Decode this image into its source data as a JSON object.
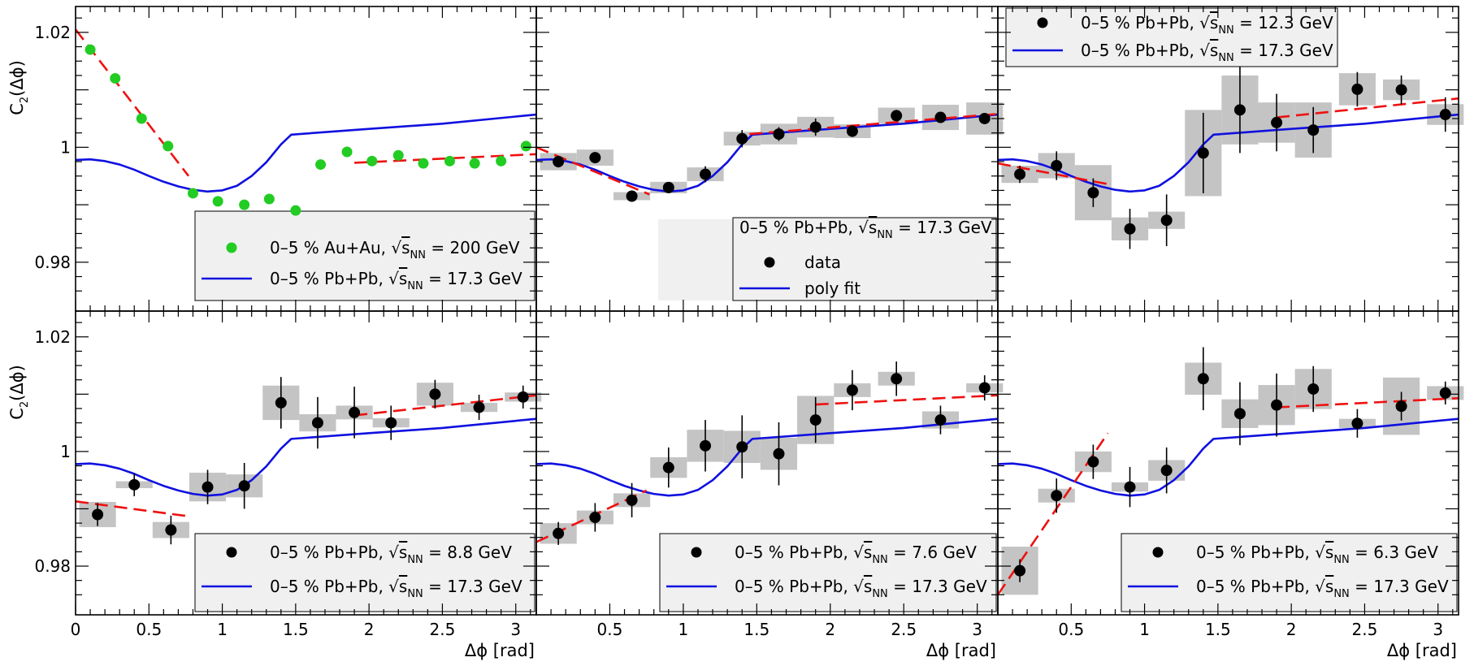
{
  "labels": {
    "y_axis": "C",
    "y_sub": "2",
    "y_arg": "(Δϕ)",
    "x_axis": "Δϕ [rad]",
    "y_ticks": [
      "0.98",
      "1",
      "1.02"
    ],
    "x_ticks": [
      "0",
      "0.5",
      "1",
      "1.5",
      "2",
      "2.5",
      "3"
    ]
  },
  "colors": {
    "data": "#000000",
    "au_data": "#22cc22",
    "reference_curve": "#1010e0",
    "linear_fit": "#ee1111",
    "systematics": "#c4c4c4",
    "legend_bg": "#f0f0f0"
  },
  "chart_data": [
    {
      "type": "scatter",
      "panel": "top-left",
      "xlim": [
        0,
        3.14
      ],
      "ylim": [
        0.9715,
        1.0245
      ],
      "series": [
        {
          "name": "0–5 % Au+Au, √sNN = 200 GeV",
          "marker": "green-dot",
          "x": [
            0.1,
            0.27,
            0.45,
            0.63,
            0.8,
            0.97,
            1.15,
            1.32,
            1.5,
            1.67,
            1.85,
            2.02,
            2.2,
            2.37,
            2.55,
            2.72,
            2.9,
            3.07
          ],
          "y": [
            1.017,
            1.012,
            1.005,
            1.0002,
            0.992,
            0.9906,
            0.99,
            0.991,
            0.989,
            0.997,
            0.9992,
            0.9976,
            0.9986,
            0.9972,
            0.9976,
            0.9972,
            0.9976,
            1.0002
          ]
        }
      ],
      "reference_curve": "0–5 % Pb+Pb, √sNN = 17.3 GeV",
      "fits": [
        {
          "x": [
            0,
            0.77
          ],
          "y": [
            1.0205,
            0.995
          ]
        },
        {
          "x": [
            1.9,
            3.14
          ],
          "y": [
            0.9973,
            0.9988
          ]
        }
      ],
      "legend": [
        {
          "pre": "0–5 % Au+Au, √",
          "rad": "s",
          "sub": "NN",
          "post": " = 200 GeV",
          "kind": "green-dot"
        },
        {
          "pre": "0–5 % Pb+Pb, √",
          "rad": "s",
          "sub": "NN",
          "post": " = 17.3 GeV",
          "kind": "blue-line"
        }
      ],
      "legend_position": "bottom-right"
    },
    {
      "type": "scatter",
      "panel": "top-center",
      "xlim": [
        0,
        3.14
      ],
      "ylim": [
        0.9715,
        1.0245
      ],
      "series": [
        {
          "name": "data",
          "marker": "black-dot",
          "x": [
            0.15,
            0.4,
            0.65,
            0.9,
            1.15,
            1.4,
            1.65,
            1.9,
            2.15,
            2.45,
            2.75,
            3.05
          ],
          "y": [
            0.9975,
            0.9982,
            0.9915,
            0.993,
            0.9953,
            1.0015,
            1.0023,
            1.0035,
            1.0028,
            1.0055,
            1.0052,
            1.005
          ],
          "err": [
            0.001,
            0.0008,
            0.0008,
            0.0008,
            0.0014,
            0.0015,
            0.0012,
            0.0015,
            0.001,
            0.0006,
            0.0006,
            0.0006
          ],
          "sys": [
            0.0015,
            0.0014,
            0.0007,
            0.001,
            0.0012,
            0.0012,
            0.0018,
            0.0018,
            0.0012,
            0.0014,
            0.0022,
            0.0028
          ]
        }
      ],
      "reference_curve": "poly fit",
      "fits": [
        {
          "x": [
            0,
            0.77
          ],
          "y": [
            1.0,
            0.9918
          ]
        },
        {
          "x": [
            1.45,
            3.14
          ],
          "y": [
            1.0023,
            1.0058
          ]
        }
      ],
      "legend_title": {
        "pre": "0–5 % Pb+Pb, √",
        "rad": "s",
        "sub": "NN",
        "post": " = 17.3 GeV"
      },
      "legend": [
        {
          "pre": "data",
          "kind": "black-dot"
        },
        {
          "pre": "poly fit",
          "kind": "blue-line"
        }
      ],
      "legend_position": "bottom-right"
    },
    {
      "type": "scatter",
      "panel": "top-right",
      "xlim": [
        0,
        3.14
      ],
      "ylim": [
        0.9715,
        1.0245
      ],
      "series": [
        {
          "name": "0–5 % Pb+Pb, √sNN = 12.3 GeV",
          "marker": "black-dot",
          "x": [
            0.15,
            0.4,
            0.65,
            0.9,
            1.15,
            1.4,
            1.65,
            1.9,
            2.15,
            2.45,
            2.75,
            3.05
          ],
          "y": [
            0.9953,
            0.9968,
            0.9921,
            0.9858,
            0.9873,
            0.999,
            1.0065,
            1.0043,
            1.003,
            1.0101,
            1.01,
            1.0057
          ],
          "err": [
            0.0015,
            0.0025,
            0.0025,
            0.0035,
            0.0045,
            0.007,
            0.0075,
            0.005,
            0.004,
            0.003,
            0.0025,
            0.003
          ],
          "sys": [
            0.0015,
            0.0022,
            0.0048,
            0.002,
            0.0015,
            0.0075,
            0.006,
            0.0035,
            0.0048,
            0.0028,
            0.0018,
            0.0018
          ]
        }
      ],
      "reference_curve": "0–5 % Pb+Pb, √sNN = 17.3 GeV",
      "fits": [
        {
          "x": [
            0,
            0.77
          ],
          "y": [
            0.9972,
            0.9935
          ]
        },
        {
          "x": [
            1.9,
            3.14
          ],
          "y": [
            1.0052,
            1.0085
          ]
        }
      ],
      "legend": [
        {
          "pre": "0–5 % Pb+Pb, √",
          "rad": "s",
          "sub": "NN",
          "post": " = 12.3 GeV",
          "kind": "black-dot"
        },
        {
          "pre": "0–5 % Pb+Pb, √",
          "rad": "s",
          "sub": "NN",
          "post": " = 17.3 GeV",
          "kind": "blue-line"
        }
      ],
      "legend_position": "top-left"
    },
    {
      "type": "scatter",
      "panel": "bottom-left",
      "xlim": [
        0,
        3.14
      ],
      "ylim": [
        0.9715,
        1.0245
      ],
      "series": [
        {
          "name": "0–5 % Pb+Pb, √sNN = 8.8 GeV",
          "marker": "black-dot",
          "x": [
            0.15,
            0.4,
            0.65,
            0.9,
            1.15,
            1.4,
            1.65,
            1.9,
            2.15,
            2.45,
            2.75,
            3.05
          ],
          "y": [
            0.989,
            0.9942,
            0.9863,
            0.9938,
            0.994,
            1.0085,
            1.005,
            1.0068,
            1.005,
            1.01,
            1.0077,
            1.0095
          ],
          "err": [
            0.002,
            0.002,
            0.0025,
            0.003,
            0.004,
            0.0045,
            0.0045,
            0.0045,
            0.003,
            0.0025,
            0.0022,
            0.002
          ],
          "sys": [
            0.0022,
            0.0006,
            0.0014,
            0.0025,
            0.002,
            0.003,
            0.0015,
            0.0012,
            0.0008,
            0.002,
            0.0008,
            0.0008
          ]
        }
      ],
      "reference_curve": "0–5 % Pb+Pb, √sNN = 17.3 GeV",
      "fits": [
        {
          "x": [
            0,
            0.77
          ],
          "y": [
            0.9913,
            0.9887
          ]
        },
        {
          "x": [
            1.9,
            3.14
          ],
          "y": [
            1.0063,
            1.0098
          ]
        }
      ],
      "legend": [
        {
          "pre": "0–5 % Pb+Pb, √",
          "rad": "s",
          "sub": "NN",
          "post": " = 8.8 GeV",
          "kind": "black-dot"
        },
        {
          "pre": "0–5 % Pb+Pb, √",
          "rad": "s",
          "sub": "NN",
          "post": " = 17.3 GeV",
          "kind": "blue-line"
        }
      ],
      "legend_position": "bottom-right"
    },
    {
      "type": "scatter",
      "panel": "bottom-center",
      "xlim": [
        0,
        3.14
      ],
      "ylim": [
        0.9715,
        1.0245
      ],
      "series": [
        {
          "name": "0–5 % Pb+Pb, √sNN = 7.6 GeV",
          "marker": "black-dot",
          "x": [
            0.15,
            0.4,
            0.65,
            0.9,
            1.15,
            1.4,
            1.65,
            1.9,
            2.15,
            2.45,
            2.75,
            3.05
          ],
          "y": [
            0.9857,
            0.9885,
            0.9915,
            0.9972,
            1.001,
            1.0008,
            0.9996,
            1.0055,
            1.0107,
            1.0127,
            1.0055,
            1.0111
          ],
          "err": [
            0.002,
            0.0025,
            0.003,
            0.0035,
            0.0045,
            0.0055,
            0.0055,
            0.004,
            0.0035,
            0.003,
            0.0025,
            0.0022
          ],
          "sys": [
            0.0018,
            0.0012,
            0.0012,
            0.0018,
            0.0028,
            0.0028,
            0.0028,
            0.0042,
            0.0012,
            0.0012,
            0.0015,
            0.0008
          ]
        }
      ],
      "reference_curve": "0–5 % Pb+Pb, √sNN = 17.3 GeV",
      "fits": [
        {
          "x": [
            0,
            0.75
          ],
          "y": [
            0.9842,
            0.9932
          ]
        },
        {
          "x": [
            1.9,
            3.14
          ],
          "y": [
            1.0082,
            1.0098
          ]
        }
      ],
      "legend": [
        {
          "pre": "0–5 % Pb+Pb, √",
          "rad": "s",
          "sub": "NN",
          "post": " = 7.6 GeV",
          "kind": "black-dot"
        },
        {
          "pre": "0–5 % Pb+Pb, √",
          "rad": "s",
          "sub": "NN",
          "post": " = 17.3 GeV",
          "kind": "blue-line"
        }
      ],
      "legend_position": "bottom-right"
    },
    {
      "type": "scatter",
      "panel": "bottom-right",
      "xlim": [
        0,
        3.14
      ],
      "ylim": [
        0.9715,
        1.0245
      ],
      "series": [
        {
          "name": "0–5 % Pb+Pb, √sNN = 6.3 GeV",
          "marker": "black-dot",
          "x": [
            0.15,
            0.4,
            0.65,
            0.9,
            1.15,
            1.4,
            1.65,
            1.9,
            2.15,
            2.45,
            2.75,
            3.05
          ],
          "y": [
            0.9792,
            0.9923,
            0.9982,
            0.9938,
            0.9967,
            1.0127,
            1.0066,
            1.0081,
            1.0109,
            1.0049,
            1.0079,
            1.0102
          ],
          "err": [
            0.002,
            0.003,
            0.003,
            0.0035,
            0.004,
            0.0055,
            0.0055,
            0.0055,
            0.004,
            0.0025,
            0.0025,
            0.002
          ],
          "sys": [
            0.0042,
            0.0012,
            0.0018,
            0.0008,
            0.0018,
            0.0028,
            0.0025,
            0.0035,
            0.0035,
            0.0008,
            0.005,
            0.0012
          ]
        }
      ],
      "reference_curve": "0–5 % Pb+Pb, √sNN = 17.3 GeV",
      "fits": [
        {
          "x": [
            0,
            0.75
          ],
          "y": [
            0.975,
            1.0032
          ]
        },
        {
          "x": [
            1.9,
            3.14
          ],
          "y": [
            1.0077,
            1.0093
          ]
        }
      ],
      "legend": [
        {
          "pre": "0–5 % Pb+Pb, √",
          "rad": "s",
          "sub": "NN",
          "post": " = 6.3 GeV",
          "kind": "black-dot"
        },
        {
          "pre": "0–5 % Pb+Pb, √",
          "rad": "s",
          "sub": "NN",
          "post": " = 17.3 GeV",
          "kind": "blue-line"
        }
      ],
      "legend_position": "bottom-right"
    }
  ],
  "poly_fit_curve": {
    "x": [
      0,
      0.1,
      0.2,
      0.3,
      0.4,
      0.5,
      0.6,
      0.7,
      0.8,
      0.9,
      1.0,
      1.1,
      1.2,
      1.3,
      1.4,
      1.47,
      2.0,
      2.5,
      3.14
    ],
    "y": [
      0.9978,
      0.9979,
      0.9976,
      0.997,
      0.9961,
      0.995,
      0.994,
      0.9932,
      0.9926,
      0.9923,
      0.9925,
      0.9933,
      0.995,
      0.9974,
      1.0005,
      1.0022,
      1.0032,
      1.0041,
      1.0057
    ]
  }
}
